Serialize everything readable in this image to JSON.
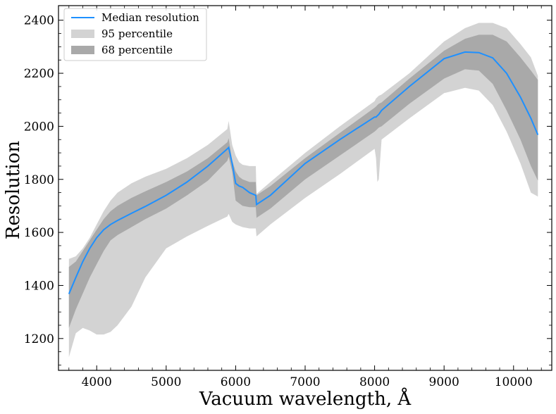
{
  "chart_data": {
    "type": "area",
    "title": "",
    "xlabel": "Vacuum wavelength, Å",
    "ylabel": "Resolution",
    "xlim": [
      3450,
      10550
    ],
    "ylim": [
      1080,
      2455
    ],
    "xticks": [
      4000,
      5000,
      6000,
      7000,
      8000,
      9000,
      10000
    ],
    "xtick_labels": [
      "4000",
      "5000",
      "6000",
      "7000",
      "8000",
      "9000",
      "10000"
    ],
    "yticks": [
      1200,
      1400,
      1600,
      1800,
      2000,
      2200,
      2400
    ],
    "ytick_labels": [
      "1200",
      "1400",
      "1600",
      "1800",
      "2000",
      "2200",
      "2400"
    ],
    "grid": false,
    "legend_position": "top-left",
    "colors": {
      "median": "#1e90ff",
      "p95": "#d3d3d3",
      "p68": "#a9a9a9"
    },
    "x": [
      3600,
      3700,
      3800,
      3900,
      4000,
      4100,
      4200,
      4300,
      4500,
      4700,
      5000,
      5300,
      5600,
      5880,
      5900,
      5950,
      6000,
      6050,
      6100,
      6200,
      6290,
      6300,
      6500,
      7000,
      7500,
      8000,
      8020,
      8040,
      8060,
      8100,
      8500,
      9000,
      9300,
      9500,
      9700,
      9900,
      10100,
      10250,
      10350
    ],
    "series": [
      {
        "name": "95 percentile",
        "upper": [
          1500,
          1510,
          1540,
          1580,
          1630,
          1680,
          1720,
          1750,
          1785,
          1810,
          1840,
          1880,
          1930,
          1990,
          2020,
          1930,
          1890,
          1865,
          1855,
          1850,
          1850,
          1745,
          1790,
          1900,
          2000,
          2095,
          2105,
          2110,
          2115,
          2120,
          2200,
          2320,
          2370,
          2390,
          2390,
          2370,
          2310,
          2260,
          2190
        ],
        "lower": [
          1130,
          1220,
          1240,
          1230,
          1215,
          1215,
          1225,
          1250,
          1320,
          1430,
          1540,
          1585,
          1625,
          1660,
          1670,
          1640,
          1630,
          1625,
          1620,
          1615,
          1615,
          1585,
          1630,
          1730,
          1820,
          1915,
          1880,
          1790,
          1800,
          1950,
          2030,
          2125,
          2145,
          2135,
          2080,
          1980,
          1860,
          1750,
          1735
        ]
      },
      {
        "name": "68 percentile",
        "upper": [
          1470,
          1490,
          1530,
          1570,
          1610,
          1650,
          1680,
          1700,
          1730,
          1755,
          1790,
          1830,
          1880,
          1940,
          1955,
          1870,
          1830,
          1810,
          1800,
          1790,
          1790,
          1740,
          1775,
          1880,
          1975,
          2070,
          2075,
          2080,
          2085,
          2090,
          2180,
          2285,
          2330,
          2345,
          2345,
          2320,
          2260,
          2210,
          2175
        ],
        "lower": [
          1240,
          1310,
          1370,
          1430,
          1480,
          1530,
          1570,
          1590,
          1620,
          1650,
          1690,
          1740,
          1795,
          1870,
          1885,
          1830,
          1720,
          1710,
          1700,
          1695,
          1695,
          1655,
          1690,
          1800,
          1890,
          1980,
          1985,
          1990,
          1995,
          2000,
          2085,
          2180,
          2215,
          2210,
          2160,
          2060,
          1950,
          1850,
          1795
        ]
      },
      {
        "name": "Median resolution",
        "values": [
          1368,
          1430,
          1490,
          1540,
          1580,
          1610,
          1630,
          1645,
          1672,
          1698,
          1740,
          1790,
          1850,
          1915,
          1920,
          1860,
          1785,
          1775,
          1770,
          1750,
          1740,
          1705,
          1740,
          1860,
          1950,
          2035,
          2035,
          2040,
          2045,
          2060,
          2150,
          2255,
          2280,
          2278,
          2258,
          2200,
          2110,
          2030,
          1968
        ]
      }
    ]
  }
}
